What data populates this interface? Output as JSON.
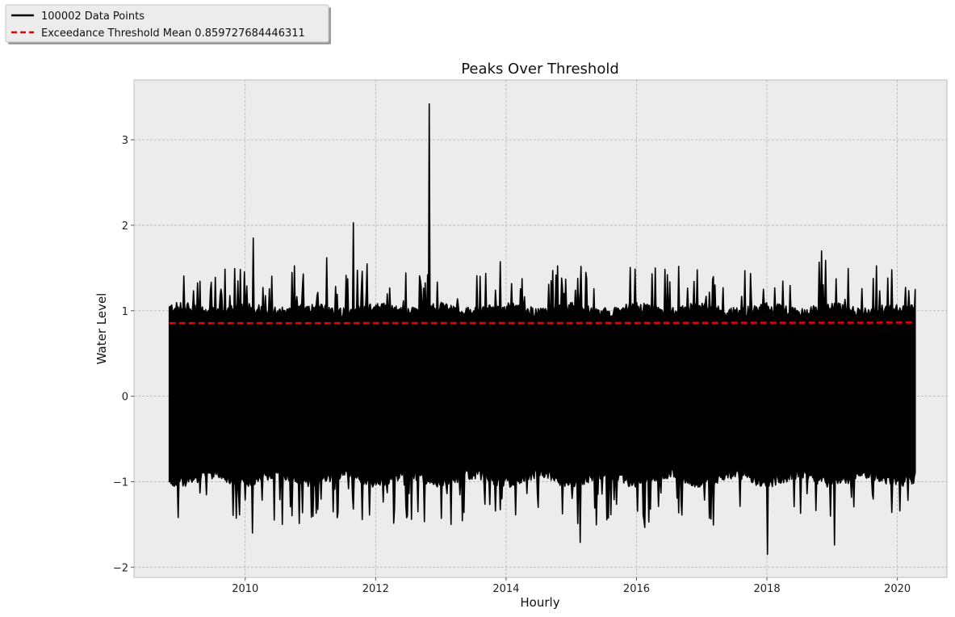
{
  "chart_data": {
    "type": "line",
    "title": "Peaks Over Threshold",
    "xlabel": "Hourly",
    "ylabel": "Water Level",
    "x_axis_type": "date",
    "xlim": [
      "2008-04-18",
      "2020-10-05"
    ],
    "ylim": [
      -2.12,
      3.7
    ],
    "x_ticks": [
      2010,
      2012,
      2014,
      2016,
      2018,
      2020
    ],
    "y_ticks": [
      -2,
      -1,
      0,
      1,
      2,
      3
    ],
    "grid": true,
    "legend_placement": "upper-left, outside plot",
    "series": [
      {
        "name": "100002 Data Points",
        "color": "#000000",
        "style": "solid",
        "x_range": [
          "2008-11-02",
          "2020-04-10"
        ],
        "n_points": 100002,
        "typical_low": -0.95,
        "typical_high": 1.0,
        "notable_peaks": [
          {
            "x": "2010-02-15",
            "y": 1.85
          },
          {
            "x": "2011-08-28",
            "y": 2.03
          },
          {
            "x": "2012-10-30",
            "y": 3.42
          },
          {
            "x": "2011-04-01",
            "y": 1.62
          },
          {
            "x": "2018-11-03",
            "y": 1.7
          }
        ],
        "notable_troughs": [
          {
            "x": "2010-02-10",
            "y": -1.6
          },
          {
            "x": "2015-02-20",
            "y": -1.71
          },
          {
            "x": "2018-01-04",
            "y": -1.85
          },
          {
            "x": "2019-01-15",
            "y": -1.74
          }
        ]
      },
      {
        "name": "Exceedance Threshold Mean 0.859727684446311",
        "color": "#e8000b",
        "style": "dashed",
        "values": [
          {
            "x": "2008-11-02",
            "y": 0.855
          },
          {
            "x": "2014-06-01",
            "y": 0.856
          },
          {
            "x": "2020-04-10",
            "y": 0.862
          }
        ]
      }
    ]
  }
}
